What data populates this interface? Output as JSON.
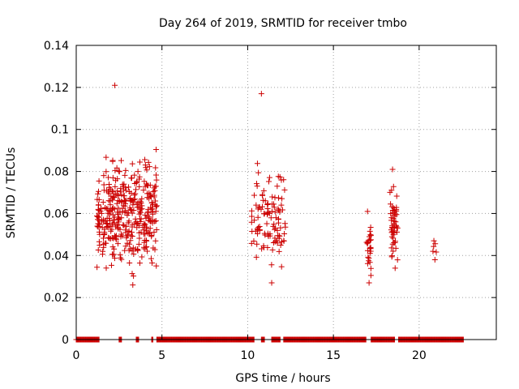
{
  "chart_data": {
    "type": "scatter",
    "title": "Day 264 of 2019, SRMTID for receiver tmbo",
    "xlabel": "GPS time / hours",
    "ylabel": "SRMTID / TECUs",
    "xlim": [
      0,
      24.5
    ],
    "ylim": [
      0,
      0.14
    ],
    "xticks": [
      "0",
      "5",
      "10",
      "15",
      "20"
    ],
    "xtick_values": [
      0,
      5,
      10,
      15,
      20
    ],
    "yticks": [
      "0",
      "0.02",
      "0.04",
      "0.06",
      "0.08",
      "0.1",
      "0.12",
      "0.14"
    ],
    "ytick_values": [
      0,
      0.02,
      0.04,
      0.06,
      0.08,
      0.1,
      0.12,
      0.14
    ],
    "grid": true,
    "marker": "+",
    "series": [
      {
        "name": "SRMTID",
        "color": "#cc0000",
        "clusters": [
          {
            "t_start": 1.2,
            "t_end": 4.7,
            "v_min": 0.026,
            "v_max": 0.121,
            "mean": 0.06,
            "spread": 0.016,
            "count": 380
          },
          {
            "t_start": 10.2,
            "t_end": 12.2,
            "v_min": 0.027,
            "v_max": 0.117,
            "mean": 0.058,
            "spread": 0.016,
            "count": 110
          },
          {
            "t_start": 16.9,
            "t_end": 17.2,
            "v_min": 0.027,
            "v_max": 0.061,
            "mean": 0.042,
            "spread": 0.008,
            "count": 25
          },
          {
            "t_start": 18.3,
            "t_end": 18.8,
            "v_min": 0.034,
            "v_max": 0.081,
            "mean": 0.055,
            "spread": 0.011,
            "count": 50
          },
          {
            "t_start": 20.8,
            "t_end": 21.0,
            "v_min": 0.038,
            "v_max": 0.047,
            "mean": 0.044,
            "spread": 0.003,
            "count": 4
          }
        ],
        "zero_segments": [
          [
            0.0,
            1.35
          ],
          [
            2.5,
            2.65
          ],
          [
            3.5,
            3.65
          ],
          [
            4.4,
            4.5
          ],
          [
            4.7,
            10.4
          ],
          [
            10.8,
            11.0
          ],
          [
            11.4,
            11.9
          ],
          [
            12.1,
            16.9
          ],
          [
            17.2,
            18.6
          ],
          [
            18.8,
            22.6
          ]
        ]
      }
    ]
  }
}
